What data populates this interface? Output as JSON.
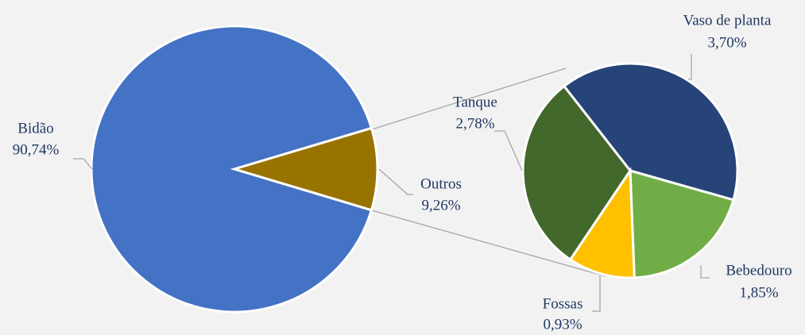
{
  "chart_data": [
    {
      "type": "pie",
      "categories": [
        "Bidão",
        "Outros"
      ],
      "values": [
        90.74,
        9.26
      ],
      "value_labels": [
        "90,74%",
        "9,26%"
      ],
      "colors": [
        "#4472c4",
        "#997300"
      ]
    },
    {
      "type": "pie",
      "categories": [
        "Vaso de planta",
        "Bebedouro",
        "Fossas",
        "Tanque"
      ],
      "values": [
        3.7,
        1.85,
        0.93,
        2.78
      ],
      "value_labels": [
        "3,70%",
        "1,85%",
        "0,93%",
        "2,78%"
      ],
      "colors": [
        "#264478",
        "#70ad47",
        "#ffc000",
        "#43682b"
      ]
    }
  ]
}
